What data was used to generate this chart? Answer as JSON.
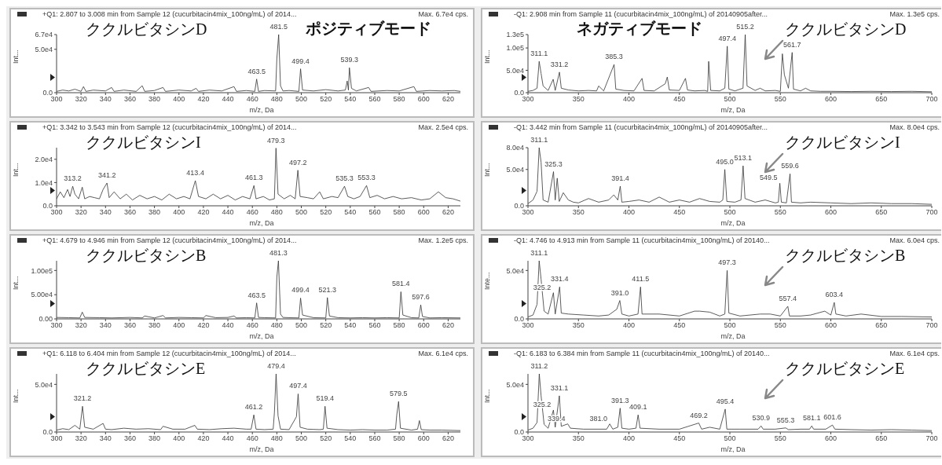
{
  "chart_data": [
    {
      "type": "line",
      "title": "+Q1: 2.807 to 3.008 min from Sample 12 (cucurbitacin4mix_100ng/mL) of 2014...",
      "xlabel": "m/z, Da",
      "ylabel": "Int...",
      "color": "#333333",
      "marker": "none",
      "annotations": [
        "Max. 6.7e4 cps.",
        "ククルビタシンD",
        "ポジティブモード",
        {
          "text": "463.5",
          "x": 463.5,
          "y": 15700
        },
        {
          "text": "481.5",
          "x": 481.5,
          "y": 67000
        },
        {
          "text": "499.4",
          "x": 499.4,
          "y": 27500
        },
        {
          "text": "539.3",
          "x": 539.3,
          "y": 28800
        }
      ],
      "xlim": [
        300,
        630
      ],
      "xticks": [
        300,
        320,
        340,
        360,
        380,
        400,
        420,
        440,
        460,
        480,
        500,
        520,
        540,
        560,
        580,
        600,
        620
      ],
      "ylim": [
        0,
        67000
      ],
      "yticks": [
        {
          "value": 0,
          "label": "0.0"
        },
        {
          "value": 50000,
          "label": "5.0e4"
        },
        {
          "value": 67000,
          "label": "6.7e4"
        }
      ],
      "x": [
        300,
        305,
        310,
        315,
        320,
        322,
        324,
        330,
        340,
        345,
        347,
        355,
        365,
        370,
        372,
        380,
        387,
        389,
        400,
        410,
        414,
        416,
        425,
        435,
        445,
        447,
        455,
        462,
        463.5,
        465,
        470,
        479,
        480,
        481.5,
        483,
        485,
        490,
        498,
        499.4,
        501,
        510,
        520,
        530,
        536,
        537.5,
        538.5,
        539.3,
        541,
        545,
        555,
        557,
        570,
        580,
        592,
        594,
        605,
        615,
        625,
        630
      ],
      "values": [
        1500,
        3000,
        2000,
        4000,
        1500,
        7000,
        1500,
        3000,
        2000,
        6000,
        1500,
        3000,
        1500,
        8000,
        1500,
        2500,
        6000,
        1500,
        3000,
        2000,
        5000,
        1500,
        3000,
        2000,
        7000,
        1500,
        2500,
        1500,
        15700,
        1500,
        2500,
        2000,
        39000,
        67000,
        8000,
        2000,
        2500,
        1500,
        27500,
        3000,
        2000,
        3500,
        2000,
        3000,
        13500,
        3000,
        28800,
        5000,
        2000,
        6000,
        1500,
        2500,
        2000,
        7000,
        1500,
        2500,
        2000,
        2500,
        1500
      ]
    },
    {
      "type": "line",
      "title": "-Q1: 2.908 min from Sample 11 (cucurbitacin4mix_100ng/mL) of 20140905after...",
      "xlabel": "m/z, Da",
      "ylabel": "Int...",
      "color": "#333333",
      "marker": "none",
      "annotations": [
        "Max. 1.3e5 cps.",
        "ククルビタシンD",
        "ネガティブモード",
        {
          "text": "311.1",
          "x": 311.1,
          "y": 70000
        },
        {
          "text": "331.2",
          "x": 331.2,
          "y": 46000
        },
        {
          "text": "385.3",
          "x": 385.3,
          "y": 63000
        },
        {
          "text": "497.4",
          "x": 497.4,
          "y": 104000
        },
        {
          "text": "515.2",
          "x": 515.2,
          "y": 130000
        },
        {
          "text": "561.7",
          "x": 561.7,
          "y": 90000
        }
      ],
      "xlim": [
        300,
        700
      ],
      "xticks": [
        300,
        350,
        400,
        450,
        500,
        550,
        600,
        650,
        700
      ],
      "ylim": [
        0,
        130000
      ],
      "yticks": [
        {
          "value": 0,
          "label": "0.0"
        },
        {
          "value": 50000,
          "label": "5.0e4"
        },
        {
          "value": 100000,
          "label": "1.0e5"
        },
        {
          "value": 130000,
          "label": "1.3e5"
        }
      ],
      "x": [
        300,
        305,
        309,
        311.1,
        313,
        315,
        320,
        325,
        327,
        331.2,
        333,
        340,
        350,
        360,
        368,
        370,
        375,
        385.3,
        387,
        395,
        405,
        413,
        415,
        425,
        436,
        438,
        440,
        450,
        456,
        458,
        465,
        475,
        478,
        479,
        481,
        490,
        495,
        497.4,
        499,
        505,
        513,
        515.2,
        517,
        525,
        530,
        535,
        545,
        550,
        552,
        554,
        558,
        561.7,
        563,
        570,
        575,
        580,
        590,
        600,
        620,
        640,
        660,
        680,
        700
      ],
      "values": [
        3000,
        5000,
        10000,
        70000,
        43000,
        15000,
        5000,
        30000,
        5000,
        46000,
        10000,
        6000,
        4000,
        5000,
        4000,
        15000,
        4000,
        63000,
        8000,
        5000,
        4000,
        32000,
        5000,
        4000,
        20000,
        35000,
        6000,
        5000,
        32000,
        6000,
        4000,
        5000,
        3000,
        70000,
        5000,
        4000,
        10000,
        104000,
        8000,
        4000,
        10000,
        130000,
        15000,
        5000,
        10000,
        4000,
        5000,
        3000,
        87000,
        40000,
        10000,
        90000,
        8000,
        4000,
        10000,
        4000,
        3000,
        3000,
        2500,
        3000,
        2500,
        3000,
        2000
      ]
    },
    {
      "type": "line",
      "title": "+Q1: 3.342 to 3.543 min from Sample 12 (cucurbitacin4mix_100ng/mL) of 2014...",
      "xlabel": "m/z, Da",
      "ylabel": "Int...",
      "color": "#333333",
      "marker": "none",
      "annotations": [
        "Max. 2.5e4 cps.",
        "ククルビタシンI",
        {
          "text": "313.2",
          "x": 313.2,
          "y": 8400
        },
        {
          "text": "341.2",
          "x": 341.2,
          "y": 9800
        },
        {
          "text": "413.4",
          "x": 413.4,
          "y": 10800
        },
        {
          "text": "461.3",
          "x": 461.3,
          "y": 8700
        },
        {
          "text": "479.3",
          "x": 479.3,
          "y": 24800
        },
        {
          "text": "497.2",
          "x": 497.2,
          "y": 15300
        },
        {
          "text": "535.3",
          "x": 535.3,
          "y": 8400
        },
        {
          "text": "553.3",
          "x": 553.3,
          "y": 8700
        }
      ],
      "xlim": [
        300,
        630
      ],
      "xticks": [
        300,
        320,
        340,
        360,
        380,
        400,
        420,
        440,
        460,
        480,
        500,
        520,
        540,
        560,
        580,
        600,
        620
      ],
      "ylim": [
        0,
        25000
      ],
      "yticks": [
        {
          "value": 0,
          "label": "0.0"
        },
        {
          "value": 10000,
          "label": "1.0e4"
        },
        {
          "value": 20000,
          "label": "2.0e4"
        }
      ],
      "x": [
        300,
        303,
        306,
        309,
        311,
        313.2,
        315,
        318,
        321,
        323,
        327,
        331,
        335,
        338,
        341.2,
        343,
        347,
        352,
        357,
        362,
        368,
        374,
        380,
        386,
        392,
        398,
        404,
        409,
        413.4,
        416,
        422,
        428,
        434,
        440,
        446,
        452,
        458,
        461.3,
        463,
        469,
        474,
        478,
        479.3,
        481,
        486,
        491,
        495,
        497.2,
        499,
        505,
        510,
        515,
        518,
        525,
        530,
        535.3,
        538,
        543,
        548,
        553.3,
        556,
        562,
        568,
        575,
        582,
        590,
        598,
        605,
        612,
        618,
        624,
        630
      ],
      "values": [
        3000,
        6000,
        3500,
        7000,
        4000,
        8400,
        5000,
        3000,
        8000,
        3000,
        4000,
        3500,
        3000,
        7000,
        9800,
        3500,
        6000,
        3000,
        5000,
        2500,
        4500,
        3000,
        4000,
        2500,
        5000,
        3000,
        4000,
        3000,
        10800,
        4000,
        3000,
        5000,
        3000,
        4500,
        2500,
        4000,
        3000,
        8700,
        3000,
        4000,
        2500,
        3000,
        24800,
        5000,
        3000,
        4500,
        3000,
        15300,
        4000,
        3500,
        3000,
        6000,
        3000,
        4000,
        3500,
        8400,
        4000,
        3000,
        4000,
        8700,
        3500,
        4500,
        3000,
        4000,
        3000,
        3500,
        2500,
        3000,
        6000,
        3500,
        3000,
        2000
      ]
    },
    {
      "type": "line",
      "title": "-Q1: 3.442 min from Sample 11 (cucurbitacin4mix_100ng/mL) of 20140905after...",
      "xlabel": "m/z, Da",
      "ylabel": "Int...",
      "color": "#333333",
      "marker": "none",
      "annotations": [
        "Max. 8.0e4 cps.",
        "ククルビタシンI",
        {
          "text": "311.1",
          "x": 311.1,
          "y": 80000
        },
        {
          "text": "325.3",
          "x": 325.3,
          "y": 47000
        },
        {
          "text": "391.4",
          "x": 391.4,
          "y": 27000
        },
        {
          "text": "495.0",
          "x": 495.0,
          "y": 50000
        },
        {
          "text": "513.1",
          "x": 513.1,
          "y": 55000
        },
        {
          "text": "549.5",
          "x": 549.5,
          "y": 31000
        },
        {
          "text": "559.6",
          "x": 559.6,
          "y": 44000
        }
      ],
      "xlim": [
        300,
        700
      ],
      "xticks": [
        300,
        350,
        400,
        450,
        500,
        550,
        600,
        650,
        700
      ],
      "ylim": [
        0,
        80000
      ],
      "yticks": [
        {
          "value": 0,
          "label": "0.0"
        },
        {
          "value": 50000,
          "label": "5.0e4"
        },
        {
          "value": 80000,
          "label": "8.0e4"
        }
      ],
      "x": [
        300,
        305,
        309,
        311.1,
        313,
        315,
        320,
        325.3,
        327,
        329,
        331,
        335,
        340,
        345,
        350,
        360,
        370,
        380,
        385,
        389,
        391.4,
        393,
        400,
        410,
        420,
        430,
        440,
        450,
        460,
        470,
        480,
        490,
        493,
        495.0,
        497,
        505,
        511,
        513.1,
        515,
        525,
        535,
        545,
        548,
        549.5,
        551,
        556,
        559.6,
        561,
        570,
        580,
        600,
        620,
        640,
        660,
        680,
        700
      ],
      "values": [
        3000,
        8000,
        20000,
        80000,
        60000,
        8000,
        5000,
        47000,
        8000,
        38000,
        6000,
        18000,
        8000,
        5000,
        4000,
        10000,
        5000,
        8000,
        15000,
        8000,
        27000,
        5000,
        6000,
        8000,
        5000,
        12000,
        5000,
        8000,
        5000,
        10000,
        6000,
        5000,
        8000,
        50000,
        6000,
        5000,
        8000,
        55000,
        10000,
        5000,
        8000,
        4000,
        5000,
        31000,
        5000,
        4000,
        44000,
        5000,
        4000,
        5000,
        4000,
        3000,
        4000,
        3000,
        3000,
        2000
      ]
    },
    {
      "type": "line",
      "title": "+Q1: 4.679 to 4.946 min from Sample 12 (cucurbitacin4mix_100ng/mL) of 2014...",
      "xlabel": "m/z, Da",
      "ylabel": "Int...",
      "color": "#333333",
      "marker": "none",
      "annotations": [
        "Max. 1.2e5 cps.",
        "ククルビタシンB",
        {
          "text": "463.5",
          "x": 463.5,
          "y": 33000
        },
        {
          "text": "481.3",
          "x": 481.3,
          "y": 120000
        },
        {
          "text": "499.4",
          "x": 499.4,
          "y": 43000
        },
        {
          "text": "521.3",
          "x": 521.3,
          "y": 44000
        },
        {
          "text": "581.4",
          "x": 581.4,
          "y": 56000
        },
        {
          "text": "597.6",
          "x": 597.6,
          "y": 29000
        }
      ],
      "xlim": [
        300,
        630
      ],
      "xticks": [
        300,
        320,
        340,
        360,
        380,
        400,
        420,
        440,
        460,
        480,
        500,
        520,
        540,
        560,
        580,
        600,
        620
      ],
      "ylim": [
        0,
        120000
      ],
      "yticks": [
        {
          "value": 0,
          "label": "0.00"
        },
        {
          "value": 50000,
          "label": "5.00e4"
        },
        {
          "value": 100000,
          "label": "1.00e5"
        }
      ],
      "x": [
        300,
        310,
        319,
        321,
        323,
        335,
        345,
        360,
        370,
        372,
        380,
        387,
        389,
        400,
        410,
        420,
        422,
        430,
        440,
        445,
        447,
        455,
        462,
        463.5,
        465,
        470,
        479,
        480,
        481.3,
        483,
        485,
        490,
        498,
        499.4,
        501,
        510,
        520,
        521.3,
        523,
        530,
        540,
        550,
        560,
        570,
        580,
        581.4,
        583,
        590,
        596,
        597.6,
        599,
        605,
        615,
        630
      ],
      "values": [
        3000,
        2500,
        2000,
        14000,
        3000,
        2500,
        2000,
        3000,
        2000,
        6000,
        2000,
        7000,
        2000,
        3000,
        2500,
        2000,
        7000,
        2500,
        3000,
        6000,
        2000,
        2500,
        2000,
        33000,
        3000,
        2500,
        2000,
        86000,
        120000,
        10000,
        3000,
        2500,
        2000,
        43000,
        8000,
        2500,
        2000,
        44000,
        6000,
        2500,
        2000,
        2500,
        2000,
        2500,
        2000,
        56000,
        8000,
        2500,
        2000,
        29000,
        5000,
        2000,
        2500,
        2000
      ]
    },
    {
      "type": "line",
      "title": "-Q1: 4.746 to 4.913 min from Sample 11 (cucurbitacin4mix_100ng/mL) of 20140...",
      "xlabel": "m/z, Da",
      "ylabel": "Inte...",
      "color": "#333333",
      "marker": "none",
      "annotations": [
        "Max. 6.0e4 cps.",
        "ククルビタシンB",
        {
          "text": "311.1",
          "x": 311.1,
          "y": 60000
        },
        {
          "text": "325.2",
          "x": 325.2,
          "y": 27000
        },
        {
          "text": "331.4",
          "x": 331.4,
          "y": 33000
        },
        {
          "text": "391.0",
          "x": 391.0,
          "y": 19000
        },
        {
          "text": "411.5",
          "x": 411.5,
          "y": 33000
        },
        {
          "text": "497.3",
          "x": 497.3,
          "y": 50000
        },
        {
          "text": "557.4",
          "x": 557.4,
          "y": 13000
        },
        {
          "text": "603.4",
          "x": 603.4,
          "y": 17000
        }
      ],
      "xlim": [
        300,
        700
      ],
      "xticks": [
        300,
        350,
        400,
        450,
        500,
        550,
        600,
        650,
        700
      ],
      "ylim": [
        0,
        60000
      ],
      "yticks": [
        {
          "value": 0,
          "label": "0.0"
        },
        {
          "value": 50000,
          "label": "5.0e4"
        }
      ],
      "x": [
        300,
        305,
        309,
        311.1,
        313,
        316,
        320,
        325.2,
        327,
        331.4,
        333,
        340,
        355,
        370,
        380,
        388,
        391.0,
        393,
        400,
        409,
        411.5,
        413,
        430,
        450,
        465,
        470,
        480,
        490,
        495,
        497.3,
        499,
        510,
        530,
        540,
        550,
        557.4,
        559,
        570,
        580,
        594,
        600,
        603.4,
        605,
        615,
        630,
        650,
        670,
        700
      ],
      "values": [
        2000,
        4000,
        15000,
        60000,
        41000,
        8000,
        5000,
        27000,
        5000,
        33000,
        6000,
        5000,
        4000,
        3000,
        4000,
        10000,
        19000,
        5000,
        3000,
        5000,
        33000,
        5000,
        5000,
        3000,
        8000,
        8000,
        7000,
        3000,
        5000,
        50000,
        6000,
        3000,
        5000,
        5000,
        3000,
        13000,
        3000,
        3000,
        4000,
        8000,
        4000,
        17000,
        5000,
        3000,
        5000,
        2500,
        2500,
        2000
      ]
    },
    {
      "type": "line",
      "title": "+Q1: 6.118 to 6.404 min from Sample 12 (cucurbitacin4mix_100ng/mL) of 2014...",
      "xlabel": "m/z, Da",
      "ylabel": "Int...",
      "color": "#333333",
      "marker": "none",
      "annotations": [
        "Max. 6.1e4 cps.",
        "ククルビタシンE",
        {
          "text": "321.2",
          "x": 321.2,
          "y": 27000
        },
        {
          "text": "461.2",
          "x": 461.2,
          "y": 18000
        },
        {
          "text": "479.4",
          "x": 479.4,
          "y": 61000
        },
        {
          "text": "497.4",
          "x": 497.4,
          "y": 40000
        },
        {
          "text": "519.4",
          "x": 519.4,
          "y": 27000
        },
        {
          "text": "579.5",
          "x": 579.5,
          "y": 32000
        }
      ],
      "xlim": [
        300,
        630
      ],
      "xticks": [
        300,
        320,
        340,
        360,
        380,
        400,
        420,
        440,
        460,
        480,
        500,
        520,
        540,
        560,
        580,
        600,
        620
      ],
      "ylim": [
        0,
        61000
      ],
      "yticks": [
        {
          "value": 0,
          "label": "0.0"
        },
        {
          "value": 50000,
          "label": "5.0e4"
        }
      ],
      "x": [
        300,
        305,
        310,
        315,
        319,
        321.2,
        323,
        330,
        338,
        340,
        345,
        355,
        365,
        375,
        385,
        387,
        395,
        405,
        413,
        415,
        425,
        435,
        445,
        455,
        459,
        461.2,
        463,
        470,
        477,
        478,
        479.4,
        481,
        483,
        490,
        496,
        497.4,
        499,
        505,
        515,
        518,
        519.4,
        521,
        530,
        540,
        550,
        560,
        570,
        577,
        578,
        579.5,
        581,
        590,
        595,
        596.5,
        598,
        605,
        615,
        630
      ],
      "values": [
        2000,
        3500,
        2500,
        7000,
        3000,
        27000,
        5000,
        3000,
        9000,
        3000,
        2500,
        4000,
        3000,
        3500,
        2500,
        6000,
        3000,
        3000,
        7000,
        3000,
        2500,
        3500,
        4000,
        3000,
        3000,
        18000,
        3000,
        2500,
        3000,
        20000,
        61000,
        17000,
        3000,
        2500,
        16000,
        40000,
        5000,
        3000,
        2500,
        3000,
        27000,
        4000,
        2500,
        2000,
        2500,
        2000,
        2000,
        3000,
        18000,
        32000,
        4000,
        2000,
        3000,
        12000,
        2500,
        2000,
        2000,
        1500
      ]
    },
    {
      "type": "line",
      "title": "-Q1: 6.183 to 6.384 min from Sample 11 (cucurbitacin4mix_100ng/mL) of 20140...",
      "xlabel": "m/z, Da",
      "ylabel": "Int...",
      "color": "#333333",
      "marker": "none",
      "annotations": [
        "Max. 6.1e4 cps.",
        "ククルビタシンE",
        {
          "text": "311.2",
          "x": 311.2,
          "y": 61000
        },
        {
          "text": "325.2",
          "x": 325.2,
          "y": 23000
        },
        {
          "text": "331.1",
          "x": 331.1,
          "y": 38000
        },
        {
          "text": "339.4",
          "x": 339.4,
          "y": 8500
        },
        {
          "text": "381.0",
          "x": 381.0,
          "y": 8500
        },
        {
          "text": "391.3",
          "x": 391.3,
          "y": 25000
        },
        {
          "text": "409.1",
          "x": 409.1,
          "y": 18000
        },
        {
          "text": "469.2",
          "x": 469.2,
          "y": 9400
        },
        {
          "text": "495.4",
          "x": 495.4,
          "y": 24000
        },
        {
          "text": "530.9",
          "x": 530.9,
          "y": 6400
        },
        {
          "text": "555.3",
          "x": 555.3,
          "y": 4300
        },
        {
          "text": "581.1",
          "x": 581.1,
          "y": 6400
        },
        {
          "text": "601.6",
          "x": 601.6,
          "y": 7300
        }
      ],
      "xlim": [
        300,
        700
      ],
      "xticks": [
        300,
        350,
        400,
        450,
        500,
        550,
        600,
        650,
        700
      ],
      "ylim": [
        0,
        61000
      ],
      "yticks": [
        {
          "value": 0,
          "label": "0.0"
        },
        {
          "value": 50000,
          "label": "5.0e4"
        }
      ],
      "x": [
        300,
        305,
        309,
        311.2,
        313,
        316,
        320,
        325.2,
        327,
        331.1,
        333,
        339.4,
        342,
        355,
        370,
        378,
        381.0,
        384,
        389,
        391.3,
        393,
        400,
        407,
        409.1,
        411,
        430,
        450,
        465,
        469.2,
        472,
        480,
        490,
        495.4,
        497,
        510,
        528,
        530.9,
        533,
        545,
        555.3,
        558,
        570,
        579,
        581.1,
        583,
        595,
        601.6,
        604,
        620,
        640,
        660,
        680,
        700
      ],
      "values": [
        2000,
        4000,
        10000,
        61000,
        38000,
        8000,
        4000,
        23000,
        5000,
        38000,
        6000,
        8500,
        4000,
        3000,
        3000,
        3000,
        8500,
        3000,
        5000,
        25000,
        4000,
        3000,
        4000,
        18000,
        4000,
        3000,
        3000,
        8000,
        9400,
        3000,
        5000,
        3000,
        24000,
        3000,
        3000,
        3000,
        6400,
        3000,
        3000,
        4300,
        2500,
        3000,
        3000,
        6400,
        3000,
        3000,
        7300,
        3000,
        2500,
        2000,
        2500,
        2000,
        1500
      ]
    }
  ]
}
